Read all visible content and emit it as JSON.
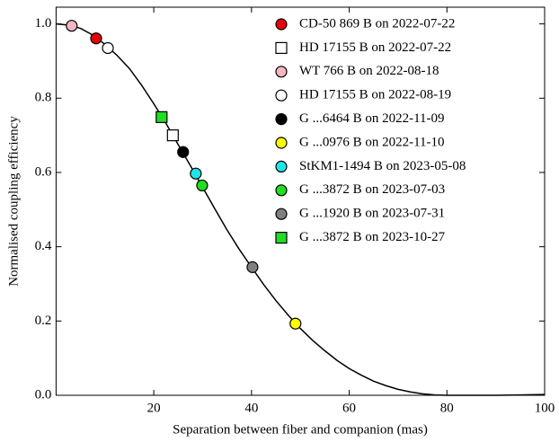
{
  "chart_data": {
    "type": "scatter",
    "xlabel": "Separation between fiber and companion (mas)",
    "ylabel": "Normalised coupling efficiency",
    "xlim": [
      0,
      100
    ],
    "ylim": [
      0,
      1.045
    ],
    "xticks": [
      20,
      40,
      60,
      80,
      100
    ],
    "yticks": [
      {
        "value": 0,
        "label": "0.0"
      },
      {
        "value": 0.2,
        "label": "0.2"
      },
      {
        "value": 0.4,
        "label": "0.4"
      },
      {
        "value": 0.6,
        "label": "0.6"
      },
      {
        "value": 0.8,
        "label": "0.8"
      },
      {
        "value": 1.0,
        "label": "1.0"
      }
    ],
    "legend": "upper right",
    "curve": {
      "color": "#000000",
      "x": [
        0,
        2.5,
        5,
        7.5,
        10,
        12.5,
        15,
        17.5,
        20,
        22.5,
        25,
        27.5,
        30,
        32.5,
        35,
        37.5,
        40,
        42.5,
        45,
        47.5,
        50,
        52.5,
        55,
        57.5,
        60,
        62.5,
        65,
        67.5,
        70,
        72.5,
        75,
        77.5,
        80,
        85,
        90,
        95,
        100
      ],
      "y": [
        1.0,
        0.997,
        0.988,
        0.97,
        0.945,
        0.915,
        0.88,
        0.835,
        0.785,
        0.732,
        0.675,
        0.618,
        0.56,
        0.502,
        0.445,
        0.393,
        0.345,
        0.298,
        0.255,
        0.216,
        0.18,
        0.148,
        0.12,
        0.094,
        0.072,
        0.054,
        0.038,
        0.026,
        0.016,
        0.009,
        0.004,
        0.001,
        0.0,
        0.0,
        0.0,
        0.001,
        0.002
      ]
    },
    "series": [
      {
        "name": "CD-50 869 B on 2022-07-22",
        "color": "#e8000b",
        "marker": "circle",
        "x": [
          8.2
        ],
        "y": [
          0.961
        ]
      },
      {
        "name": "HD 17155 B on 2022-07-22",
        "color": "#ffffff",
        "marker": "square",
        "x": [
          23.9
        ],
        "y": [
          0.7
        ]
      },
      {
        "name": "WT 766 B on 2022-08-18",
        "color": "#f4b6c2",
        "marker": "circle",
        "x": [
          3.2
        ],
        "y": [
          0.995
        ]
      },
      {
        "name": "HD 17155 B on 2022-08-19",
        "color": "#ffffff",
        "marker": "circle",
        "x": [
          10.6
        ],
        "y": [
          0.935
        ]
      },
      {
        "name": "G ...6464 B on 2022-11-09",
        "color": "#000000",
        "marker": "circle",
        "x": [
          26.0
        ],
        "y": [
          0.655
        ]
      },
      {
        "name": "G ...0976 B on 2022-11-10",
        "color": "#ffff00",
        "marker": "circle",
        "x": [
          49.0
        ],
        "y": [
          0.193
        ]
      },
      {
        "name": "StKM1-1494 B on 2023-05-08",
        "color": "#1ee6e6",
        "marker": "circle",
        "x": [
          28.6
        ],
        "y": [
          0.597
        ]
      },
      {
        "name": "G ...3872 B on 2023-07-03",
        "color": "#22dd22",
        "marker": "circle",
        "x": [
          29.9
        ],
        "y": [
          0.565
        ]
      },
      {
        "name": "G ...1920 B on 2023-07-31",
        "color": "#808080",
        "marker": "circle",
        "x": [
          40.2
        ],
        "y": [
          0.345
        ]
      },
      {
        "name": "G ...3872 B on 2023-10-27",
        "color": "#22dd22",
        "marker": "square",
        "x": [
          21.6
        ],
        "y": [
          0.749
        ]
      }
    ]
  }
}
